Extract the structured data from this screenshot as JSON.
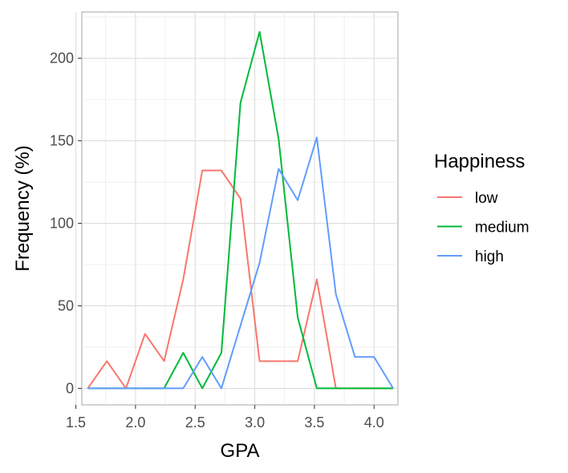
{
  "chart_data": {
    "type": "line",
    "xlabel": "GPA",
    "ylabel": "Frequency (%)",
    "xlim": [
      1.55,
      4.2
    ],
    "ylim": [
      -10,
      228
    ],
    "x_ticks": [
      1.5,
      2.0,
      2.5,
      3.0,
      3.5,
      4.0
    ],
    "x_tick_labels": [
      "1.5",
      "2.0",
      "2.5",
      "3.0",
      "3.5",
      "4.0"
    ],
    "y_ticks": [
      0,
      50,
      100,
      150,
      200
    ],
    "y_tick_labels": [
      "0",
      "50",
      "100",
      "150",
      "200"
    ],
    "grid": true,
    "legend": {
      "title": "Happiness",
      "position": "right"
    },
    "x": [
      1.6,
      1.76,
      1.92,
      2.08,
      2.24,
      2.4,
      2.56,
      2.72,
      2.88,
      3.04,
      3.2,
      3.36,
      3.52,
      3.68,
      3.84,
      4.0,
      4.16
    ],
    "series": [
      {
        "name": "low",
        "color": "#F8766D",
        "values": [
          0,
          16.5,
          0,
          33,
          16.5,
          66,
          132,
          132,
          115,
          16.5,
          16.5,
          16.5,
          66,
          0,
          0,
          0,
          0
        ]
      },
      {
        "name": "medium",
        "color": "#00BA38",
        "values": [
          0,
          0,
          0,
          0,
          0,
          21.5,
          0,
          21.5,
          173,
          216,
          151,
          43,
          0,
          0,
          0,
          0,
          0
        ]
      },
      {
        "name": "high",
        "color": "#619CFF",
        "values": [
          0,
          0,
          0,
          0,
          0,
          0,
          19,
          0,
          38,
          76,
          133,
          114,
          152,
          57,
          19,
          19,
          0
        ]
      }
    ]
  }
}
